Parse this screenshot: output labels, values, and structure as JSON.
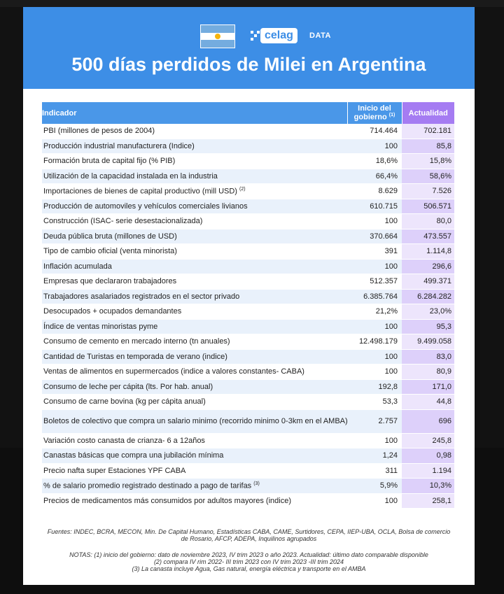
{
  "header": {
    "title": "500 días perdidos de Milei en Argentina",
    "logo_text": "celag",
    "logo_suffix": "DATA"
  },
  "table": {
    "columns": [
      "Indicador",
      "Inicio del gobierno",
      "Actualidad"
    ],
    "columns_note": "(1)",
    "rows": [
      {
        "indicator": "PBI (millones de pesos de 2004)",
        "note": "",
        "start": "714.464",
        "current": "702.181"
      },
      {
        "indicator": "Producción industrial manufacturera (Indice)",
        "note": "",
        "start": "100",
        "current": "85,8"
      },
      {
        "indicator": "Formación bruta de capital fijo (% PIB)",
        "note": "",
        "start": "18,6%",
        "current": "15,8%"
      },
      {
        "indicator": "Utilización de la capacidad instalada en la industria",
        "note": "",
        "start": "66,4%",
        "current": "58,6%"
      },
      {
        "indicator": "Importaciones de bienes de capital productivo (mill USD)",
        "note": "(2)",
        "start": "8.629",
        "current": "7.526"
      },
      {
        "indicator": "Producción de automoviles y vehículos comerciales livianos",
        "note": "",
        "start": "610.715",
        "current": "506.571"
      },
      {
        "indicator": "Construcción (ISAC- serie desestacionalizada)",
        "note": "",
        "start": "100",
        "current": "80,0"
      },
      {
        "indicator": "Deuda pública bruta (millones de USD)",
        "note": "",
        "start": "370.664",
        "current": "473.557"
      },
      {
        "indicator": "Tipo de cambio oficial (venta minorista)",
        "note": "",
        "start": "391",
        "current": "1.114,8"
      },
      {
        "indicator": "Inflación acumulada",
        "note": "",
        "start": "100",
        "current": "296,6"
      },
      {
        "indicator": "Empresas que declararon trabajadores",
        "note": "",
        "start": "512.357",
        "current": "499.371"
      },
      {
        "indicator": "Trabajadores asalariados registrados en el sector privado",
        "note": "",
        "start": "6.385.764",
        "current": "6.284.282"
      },
      {
        "indicator": "Desocupados + ocupados demandantes",
        "note": "",
        "start": "21,2%",
        "current": "23,0%"
      },
      {
        "indicator": "Índice de ventas minoristas pyme",
        "note": "",
        "start": "100",
        "current": "95,3"
      },
      {
        "indicator": "Consumo de cemento en mercado interno (tn anuales)",
        "note": "",
        "start": "12.498.179",
        "current": "9.499.058"
      },
      {
        "indicator": "Cantidad de Turistas en temporada de verano (indice)",
        "note": "",
        "start": "100",
        "current": "83,0"
      },
      {
        "indicator": "Ventas de alimentos en supermercados (indice a valores constantes- CABA)",
        "note": "",
        "start": "100",
        "current": "80,9"
      },
      {
        "indicator": "Consumo de leche per cápita (lts. Por hab. anual)",
        "note": "",
        "start": "192,8",
        "current": "171,0"
      },
      {
        "indicator": "Consumo de carne bovina (kg per cápita anual)",
        "note": "",
        "start": "53,3",
        "current": "44,8"
      },
      {
        "indicator": "Boletos de colectivo que compra un salario minimo (recorrido minimo 0-3km en el AMBA)",
        "note": "",
        "start": "2.757",
        "current": "696"
      },
      {
        "indicator": "Variación costo canasta de crianza- 6 a 12años",
        "note": "",
        "start": "100",
        "current": "245,8"
      },
      {
        "indicator": "Canastas básicas que compra una jubilación mínima",
        "note": "",
        "start": "1,24",
        "current": "0,98"
      },
      {
        "indicator": "Precio nafta super Estaciones YPF CABA",
        "note": "",
        "start": "311",
        "current": "1.194"
      },
      {
        "indicator": "% de salario promedio registrado destinado a pago de tarifas",
        "note": "(3)",
        "start": "5,9%",
        "current": "10,3%"
      },
      {
        "indicator": "Precios de medicamentos más consumidos por adultos mayores (indice)",
        "note": "",
        "start": "100",
        "current": "258,1"
      }
    ]
  },
  "footer": {
    "sources": "Fuentes: INDEC, BCRA, MECON, Min. De Capital Humano, Estadísticas CABA, CAME, Surtidores, CEPA, IIEP-UBA, OCLA, Bolsa de comercio de Rosario, AFCP, ADEPA, Inquilinos agrupados",
    "note1": "NOTAS: (1) inicio del gobierno: dato de noviembre 2023, IV trim 2023 o año 2023. Actualidad: último dato comparable disponible",
    "note2": "(2) compara IV rim 2022- III trim 2023 con IV trim 2023 -III trim 2024",
    "note3": "(3) La canasta incluye Agua, Gas natural, energía eléctrica y transporte en el AMBA"
  },
  "colors": {
    "header_blue": "#3d8ee6",
    "column_purple": "#a57cf2",
    "row_stripe": "#e9f1fb"
  }
}
